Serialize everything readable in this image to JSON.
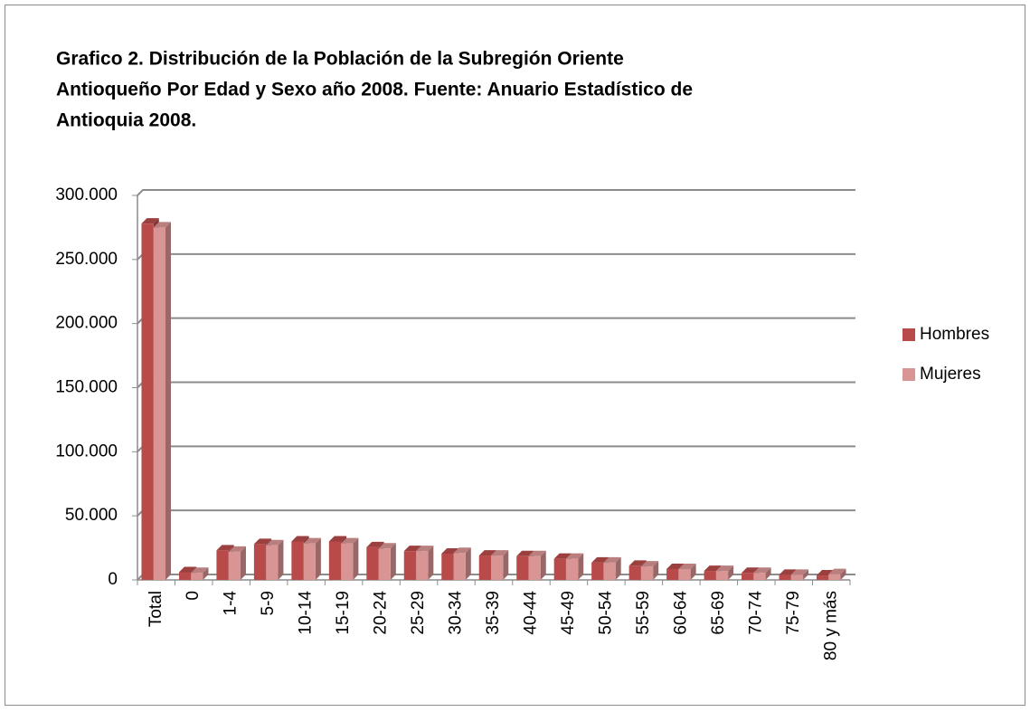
{
  "chart_data": {
    "type": "bar",
    "title": [
      "Grafico 2. Distribución de la Población de la Subregión Oriente",
      "Antioqueño Por Edad y Sexo año 2008. Fuente: Anuario Estadístico de",
      "Antioquia 2008."
    ],
    "categories": [
      "Total",
      "0",
      "1-4",
      "5-9",
      "10-14",
      "15-19",
      "20-24",
      "25-29",
      "30-34",
      "35-39",
      "40-44",
      "45-49",
      "50-54",
      "55-59",
      "60-64",
      "65-69",
      "70-74",
      "75-79",
      "80 y más"
    ],
    "series": [
      {
        "name": "Hombres",
        "color": "#b84a4a",
        "values": [
          278000,
          6000,
          23000,
          28000,
          30000,
          30000,
          25500,
          22500,
          20500,
          19000,
          18500,
          16500,
          13500,
          11000,
          8500,
          7000,
          5500,
          4000,
          3500
        ]
      },
      {
        "name": "Mujeres",
        "color": "#d99594",
        "values": [
          275000,
          5500,
          22000,
          27000,
          28500,
          28500,
          24500,
          22500,
          21000,
          19000,
          18500,
          16500,
          13500,
          10500,
          8500,
          7000,
          5500,
          4000,
          4500
        ]
      }
    ],
    "ylim": [
      0,
      300000
    ],
    "yticks": [
      0,
      {
        "value": 50000,
        "label": "50.000"
      },
      {
        "value": 100000,
        "label": "100.000"
      },
      {
        "value": 150000,
        "label": "150.000"
      },
      {
        "value": 200000,
        "label": "200.000"
      },
      {
        "value": 250000,
        "label": "250.000"
      },
      {
        "value": 300000,
        "label": "300.000"
      }
    ],
    "grid": true,
    "legend": "right"
  }
}
